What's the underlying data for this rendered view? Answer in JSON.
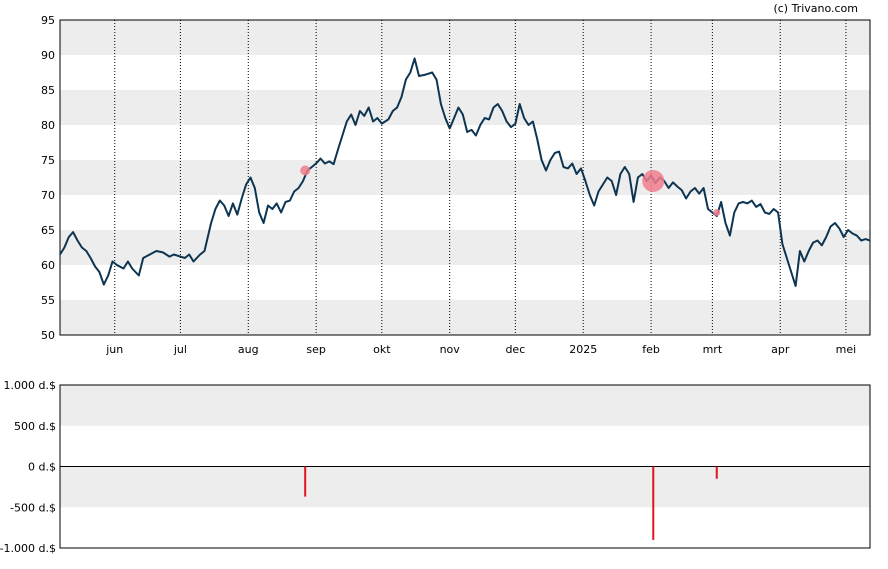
{
  "credit": "(c) Trivano.com",
  "chart_data": [
    {
      "type": "line",
      "ylim": [
        50,
        95
      ],
      "yticks": [
        50,
        55,
        60,
        65,
        70,
        75,
        80,
        85,
        90,
        95
      ],
      "xlim": [
        "2024-05-07",
        "2025-05-12"
      ],
      "xticks": [
        {
          "label": "jun",
          "date": "2024-06-01"
        },
        {
          "label": "jul",
          "date": "2024-07-01"
        },
        {
          "label": "aug",
          "date": "2024-08-01"
        },
        {
          "label": "sep",
          "date": "2024-09-01"
        },
        {
          "label": "okt",
          "date": "2024-10-01"
        },
        {
          "label": "nov",
          "date": "2024-11-01"
        },
        {
          "label": "dec",
          "date": "2024-12-01"
        },
        {
          "label": "2025",
          "date": "2025-01-01"
        },
        {
          "label": "feb",
          "date": "2025-02-01"
        },
        {
          "label": "mrt",
          "date": "2025-03-01"
        },
        {
          "label": "apr",
          "date": "2025-04-01"
        },
        {
          "label": "mei",
          "date": "2025-05-01"
        }
      ],
      "grid": true,
      "line_color": "#0d3552",
      "series": [
        {
          "points": [
            [
              "2024-05-07",
              61.5
            ],
            [
              "2024-05-09",
              62.5
            ],
            [
              "2024-05-11",
              64
            ],
            [
              "2024-05-13",
              64.7
            ],
            [
              "2024-05-15",
              63.5
            ],
            [
              "2024-05-17",
              62.5
            ],
            [
              "2024-05-19",
              62
            ],
            [
              "2024-05-21",
              61
            ],
            [
              "2024-05-23",
              59.8
            ],
            [
              "2024-05-25",
              59
            ],
            [
              "2024-05-27",
              57.2
            ],
            [
              "2024-05-29",
              58.5
            ],
            [
              "2024-05-31",
              60.5
            ],
            [
              "2024-06-02",
              60
            ],
            [
              "2024-06-05",
              59.5
            ],
            [
              "2024-06-07",
              60.5
            ],
            [
              "2024-06-09",
              59.5
            ],
            [
              "2024-06-12",
              58.5
            ],
            [
              "2024-06-14",
              61
            ],
            [
              "2024-06-17",
              61.5
            ],
            [
              "2024-06-20",
              62
            ],
            [
              "2024-06-23",
              61.8
            ],
            [
              "2024-06-26",
              61.2
            ],
            [
              "2024-06-28",
              61.5
            ],
            [
              "2024-07-01",
              61.2
            ],
            [
              "2024-07-03",
              61
            ],
            [
              "2024-07-05",
              61.5
            ],
            [
              "2024-07-07",
              60.5
            ],
            [
              "2024-07-10",
              61.5
            ],
            [
              "2024-07-12",
              62
            ],
            [
              "2024-07-15",
              66
            ],
            [
              "2024-07-17",
              68
            ],
            [
              "2024-07-19",
              69.2
            ],
            [
              "2024-07-21",
              68.5
            ],
            [
              "2024-07-23",
              67
            ],
            [
              "2024-07-25",
              68.8
            ],
            [
              "2024-07-27",
              67.2
            ],
            [
              "2024-07-29",
              69.5
            ],
            [
              "2024-07-31",
              71.5
            ],
            [
              "2024-08-02",
              72.5
            ],
            [
              "2024-08-04",
              71
            ],
            [
              "2024-08-06",
              67.5
            ],
            [
              "2024-08-08",
              66
            ],
            [
              "2024-08-10",
              68.5
            ],
            [
              "2024-08-12",
              68
            ],
            [
              "2024-08-14",
              68.8
            ],
            [
              "2024-08-16",
              67.5
            ],
            [
              "2024-08-18",
              69
            ],
            [
              "2024-08-20",
              69.2
            ],
            [
              "2024-08-22",
              70.5
            ],
            [
              "2024-08-24",
              71
            ],
            [
              "2024-08-26",
              72
            ],
            [
              "2024-08-28",
              73.5
            ],
            [
              "2024-08-30",
              74
            ],
            [
              "2024-09-01",
              74.5
            ],
            [
              "2024-09-03",
              75.2
            ],
            [
              "2024-09-05",
              74.5
            ],
            [
              "2024-09-07",
              74.8
            ],
            [
              "2024-09-09",
              74.4
            ],
            [
              "2024-09-11",
              76.5
            ],
            [
              "2024-09-13",
              78.5
            ],
            [
              "2024-09-15",
              80.5
            ],
            [
              "2024-09-17",
              81.5
            ],
            [
              "2024-09-19",
              80
            ],
            [
              "2024-09-21",
              82
            ],
            [
              "2024-09-23",
              81.3
            ],
            [
              "2024-09-25",
              82.5
            ],
            [
              "2024-09-27",
              80.5
            ],
            [
              "2024-09-29",
              81
            ],
            [
              "2024-10-01",
              80.2
            ],
            [
              "2024-10-04",
              80.8
            ],
            [
              "2024-10-06",
              82
            ],
            [
              "2024-10-08",
              82.5
            ],
            [
              "2024-10-10",
              84
            ],
            [
              "2024-10-12",
              86.5
            ],
            [
              "2024-10-14",
              87.5
            ],
            [
              "2024-10-16",
              89.5
            ],
            [
              "2024-10-18",
              87
            ],
            [
              "2024-10-21",
              87.2
            ],
            [
              "2024-10-24",
              87.5
            ],
            [
              "2024-10-26",
              86.5
            ],
            [
              "2024-10-28",
              83
            ],
            [
              "2024-10-30",
              81
            ],
            [
              "2024-11-01",
              79.5
            ],
            [
              "2024-11-03",
              81
            ],
            [
              "2024-11-05",
              82.5
            ],
            [
              "2024-11-07",
              81.5
            ],
            [
              "2024-11-09",
              79
            ],
            [
              "2024-11-11",
              79.3
            ],
            [
              "2024-11-13",
              78.5
            ],
            [
              "2024-11-15",
              80
            ],
            [
              "2024-11-17",
              81
            ],
            [
              "2024-11-19",
              80.8
            ],
            [
              "2024-11-21",
              82.5
            ],
            [
              "2024-11-23",
              83
            ],
            [
              "2024-11-25",
              82
            ],
            [
              "2024-11-27",
              80.5
            ],
            [
              "2024-11-29",
              79.7
            ],
            [
              "2024-12-01",
              80.2
            ],
            [
              "2024-12-03",
              83
            ],
            [
              "2024-12-05",
              81
            ],
            [
              "2024-12-07",
              80
            ],
            [
              "2024-12-09",
              80.5
            ],
            [
              "2024-12-11",
              78
            ],
            [
              "2024-12-13",
              75
            ],
            [
              "2024-12-15",
              73.5
            ],
            [
              "2024-12-17",
              75
            ],
            [
              "2024-12-19",
              76
            ],
            [
              "2024-12-21",
              76.2
            ],
            [
              "2024-12-23",
              74
            ],
            [
              "2024-12-25",
              73.8
            ],
            [
              "2024-12-27",
              74.5
            ],
            [
              "2024-12-29",
              73
            ],
            [
              "2024-12-31",
              73.8
            ],
            [
              "2025-01-02",
              72
            ],
            [
              "2025-01-04",
              70
            ],
            [
              "2025-01-06",
              68.5
            ],
            [
              "2025-01-08",
              70.5
            ],
            [
              "2025-01-10",
              71.5
            ],
            [
              "2025-01-12",
              72.5
            ],
            [
              "2025-01-14",
              72
            ],
            [
              "2025-01-16",
              70
            ],
            [
              "2025-01-18",
              73
            ],
            [
              "2025-01-20",
              74
            ],
            [
              "2025-01-22",
              73
            ],
            [
              "2025-01-24",
              69
            ],
            [
              "2025-01-26",
              72.5
            ],
            [
              "2025-01-28",
              73
            ],
            [
              "2025-01-30",
              72
            ],
            [
              "2025-02-01",
              72.8
            ],
            [
              "2025-02-03",
              71.7
            ],
            [
              "2025-02-05",
              72.5
            ],
            [
              "2025-02-07",
              72
            ],
            [
              "2025-02-09",
              71
            ],
            [
              "2025-02-11",
              71.8
            ],
            [
              "2025-02-13",
              71.2
            ],
            [
              "2025-02-15",
              70.7
            ],
            [
              "2025-02-17",
              69.5
            ],
            [
              "2025-02-19",
              70.5
            ],
            [
              "2025-02-21",
              71
            ],
            [
              "2025-02-23",
              70.2
            ],
            [
              "2025-02-25",
              71
            ],
            [
              "2025-02-27",
              68
            ],
            [
              "2025-03-01",
              67.5
            ],
            [
              "2025-03-03",
              67
            ],
            [
              "2025-03-05",
              69
            ],
            [
              "2025-03-07",
              66
            ],
            [
              "2025-03-09",
              64.2
            ],
            [
              "2025-03-11",
              67.5
            ],
            [
              "2025-03-13",
              68.8
            ],
            [
              "2025-03-15",
              69
            ],
            [
              "2025-03-17",
              68.8
            ],
            [
              "2025-03-19",
              69.2
            ],
            [
              "2025-03-21",
              68.3
            ],
            [
              "2025-03-23",
              68.7
            ],
            [
              "2025-03-25",
              67.5
            ],
            [
              "2025-03-27",
              67.3
            ],
            [
              "2025-03-29",
              68
            ],
            [
              "2025-03-31",
              67.5
            ],
            [
              "2025-04-02",
              63
            ],
            [
              "2025-04-04",
              61
            ],
            [
              "2025-04-06",
              59
            ],
            [
              "2025-04-08",
              57
            ],
            [
              "2025-04-10",
              62
            ],
            [
              "2025-04-12",
              60.5
            ],
            [
              "2025-04-14",
              62
            ],
            [
              "2025-04-16",
              63.2
            ],
            [
              "2025-04-18",
              63.5
            ],
            [
              "2025-04-20",
              62.8
            ],
            [
              "2025-04-22",
              64
            ],
            [
              "2025-04-24",
              65.5
            ],
            [
              "2025-04-26",
              66
            ],
            [
              "2025-04-28",
              65.2
            ],
            [
              "2025-04-30",
              64
            ],
            [
              "2025-05-02",
              65
            ],
            [
              "2025-05-04",
              64.5
            ],
            [
              "2025-05-06",
              64.2
            ],
            [
              "2025-05-08",
              63.5
            ],
            [
              "2025-05-10",
              63.7
            ],
            [
              "2025-05-12",
              63.5
            ]
          ]
        }
      ],
      "markers": [
        {
          "date": "2024-08-27",
          "value": 73.5,
          "size": "small",
          "color": "#f07c8c"
        },
        {
          "date": "2025-02-02",
          "value": 72,
          "size": "large",
          "color": "#f07c8c"
        },
        {
          "date": "2025-03-03",
          "value": 67.5,
          "size": "tiny",
          "color": "#f07c8c"
        }
      ]
    },
    {
      "type": "bar",
      "ylim": [
        -1000,
        1000
      ],
      "yticks": [
        {
          "value": 1000,
          "label": "1.000 d.$"
        },
        {
          "value": 500,
          "label": "500 d.$"
        },
        {
          "value": 0,
          "label": "0 d.$"
        },
        {
          "value": -500,
          "label": "-500 d.$"
        },
        {
          "value": -1000,
          "label": "-1.000 d.$"
        }
      ],
      "bar_color": "#e2141f",
      "bars": [
        {
          "date": "2024-08-27",
          "value": -370
        },
        {
          "date": "2025-02-02",
          "value": -900
        },
        {
          "date": "2025-03-03",
          "value": -150
        }
      ]
    }
  ]
}
